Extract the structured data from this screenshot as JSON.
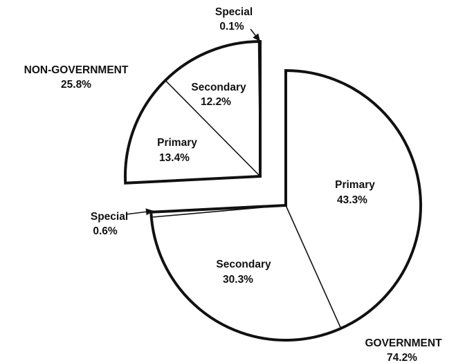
{
  "chart_data": {
    "type": "pie",
    "title": "",
    "groups": [
      {
        "name": "NON-GOVERNMENT",
        "value": 25.8,
        "label": "NON-GOVERNMENT",
        "value_label": "25.8%",
        "exploded": true,
        "slices": [
          {
            "name": "Special",
            "value": 0.1,
            "label": "Special",
            "value_label": "0.1%"
          },
          {
            "name": "Secondary",
            "value": 12.2,
            "label": "Secondary",
            "value_label": "12.2%"
          },
          {
            "name": "Primary",
            "value": 13.4,
            "label": "Primary",
            "value_label": "13.4%"
          }
        ]
      },
      {
        "name": "GOVERNMENT",
        "value": 74.2,
        "label": "GOVERNMENT",
        "value_label": "74.2%",
        "exploded": false,
        "slices": [
          {
            "name": "Primary",
            "value": 43.3,
            "label": "Primary",
            "value_label": "43.3%"
          },
          {
            "name": "Secondary",
            "value": 30.3,
            "label": "Secondary",
            "value_label": "30.3%"
          },
          {
            "name": "Special",
            "value": 0.6,
            "label": "Special",
            "value_label": "0.6%"
          }
        ]
      }
    ],
    "colors": {
      "fill": "#ffffff",
      "stroke": "#111111"
    },
    "legend": "none",
    "grid": false
  }
}
